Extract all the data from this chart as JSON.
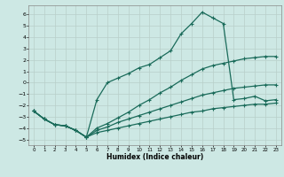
{
  "xlabel": "Humidex (Indice chaleur)",
  "xlim": [
    -0.5,
    23.5
  ],
  "ylim": [
    -5.5,
    6.8
  ],
  "yticks": [
    -5,
    -4,
    -3,
    -2,
    -1,
    0,
    1,
    2,
    3,
    4,
    5,
    6
  ],
  "xticks": [
    0,
    1,
    2,
    3,
    4,
    5,
    6,
    7,
    8,
    9,
    10,
    11,
    12,
    13,
    14,
    15,
    16,
    17,
    18,
    19,
    20,
    21,
    22,
    23
  ],
  "bg_color": "#cde8e4",
  "grid_color": "#b8cfc9",
  "line_color": "#1a6b5a",
  "line1_y": [
    -2.5,
    -3.2,
    -3.7,
    -3.8,
    -4.2,
    -4.8,
    -4.4,
    -4.2,
    -4.0,
    -3.8,
    -3.6,
    -3.4,
    -3.2,
    -3.0,
    -2.8,
    -2.6,
    -2.5,
    -2.3,
    -2.2,
    -2.1,
    -2.0,
    -1.9,
    -1.9,
    -1.8
  ],
  "line2_y": [
    -2.5,
    -3.2,
    -3.7,
    -3.8,
    -4.2,
    -4.8,
    -4.2,
    -3.9,
    -3.5,
    -3.2,
    -2.9,
    -2.6,
    -2.3,
    -2.0,
    -1.7,
    -1.4,
    -1.1,
    -0.9,
    -0.7,
    -0.5,
    -0.4,
    -0.3,
    -0.2,
    -0.2
  ],
  "line3_y": [
    -2.5,
    -3.2,
    -3.7,
    -3.8,
    -4.2,
    -4.8,
    -4.0,
    -3.6,
    -3.1,
    -2.6,
    -2.0,
    -1.5,
    -0.9,
    -0.4,
    0.2,
    0.7,
    1.2,
    1.5,
    1.7,
    1.9,
    2.1,
    2.2,
    2.3,
    2.3
  ],
  "line_main_y": [
    -2.5,
    -3.2,
    -3.7,
    -3.8,
    -4.2,
    -4.8,
    -1.5,
    0.0,
    0.4,
    0.8,
    1.3,
    1.6,
    2.2,
    2.8,
    4.3,
    5.2,
    6.2,
    5.7,
    5.2,
    -1.5,
    -1.4,
    -1.2,
    -1.6,
    -1.5
  ]
}
